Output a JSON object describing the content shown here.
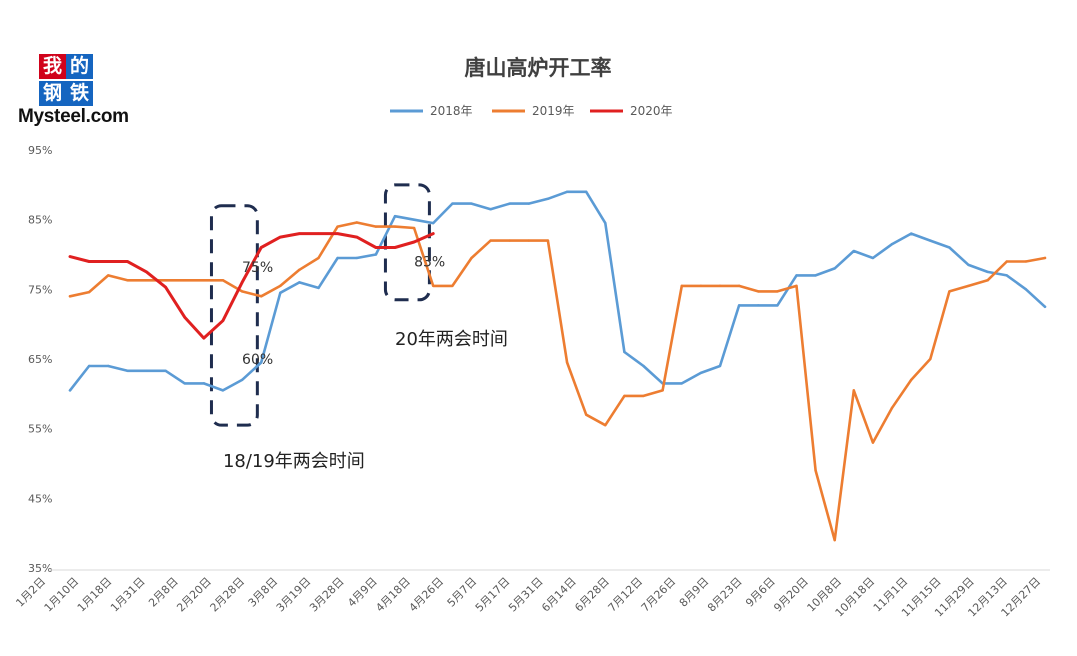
{
  "logo": {
    "chars": [
      "我",
      "的",
      "钢",
      "铁"
    ],
    "wordmark": "Mysteel.com",
    "colors": [
      "#d0021b",
      "#1565c0",
      "#1565c0",
      "#1565c0"
    ]
  },
  "chart_data": {
    "type": "line",
    "title": "唐山高炉开工率",
    "legend_position": "top-center",
    "grid": false,
    "ylim": [
      35,
      95
    ],
    "y_ticks": [
      "95%",
      "85%",
      "75%",
      "65%",
      "55%",
      "45%",
      "35%"
    ],
    "x_ticks": [
      "1月2日",
      "1月10日",
      "1月18日",
      "1月31日",
      "2月8日",
      "2月20日",
      "2月28日",
      "3月8日",
      "3月19日",
      "3月28日",
      "4月9日",
      "4月18日",
      "4月26日",
      "5月7日",
      "5月17日",
      "5月31日",
      "6月14日",
      "6月28日",
      "7月12日",
      "7月26日",
      "8月9日",
      "8月23日",
      "9月6日",
      "9月20日",
      "10月8日",
      "10月18日",
      "11月1日",
      "11月15日",
      "11月29日",
      "12月13日",
      "12月27日"
    ],
    "series": [
      {
        "name": "2018年",
        "color": "#5b9bd5",
        "points": [
          [
            1,
            60.5
          ],
          [
            2,
            64
          ],
          [
            3,
            64
          ],
          [
            4,
            63.3
          ],
          [
            5,
            63.3
          ],
          [
            6,
            63.3
          ],
          [
            7,
            61.5
          ],
          [
            8,
            61.5
          ],
          [
            9,
            60.5
          ],
          [
            10,
            62
          ],
          [
            11,
            64.5
          ],
          [
            12,
            74.5
          ],
          [
            13,
            76
          ],
          [
            14,
            75.2
          ],
          [
            15,
            79.5
          ],
          [
            16,
            79.5
          ],
          [
            17,
            80
          ],
          [
            18,
            85.5
          ],
          [
            19,
            85
          ],
          [
            20,
            84.5
          ],
          [
            21,
            87.3
          ],
          [
            22,
            87.3
          ],
          [
            23,
            86.5
          ],
          [
            24,
            87.3
          ],
          [
            25,
            87.3
          ],
          [
            26,
            88
          ],
          [
            27,
            89
          ],
          [
            28,
            89
          ],
          [
            29,
            84.5
          ],
          [
            30,
            66
          ],
          [
            31,
            64
          ],
          [
            32,
            61.5
          ],
          [
            33,
            61.5
          ],
          [
            34,
            63
          ],
          [
            35,
            64
          ],
          [
            36,
            72.7
          ],
          [
            37,
            72.7
          ],
          [
            38,
            72.7
          ],
          [
            39,
            77
          ],
          [
            40,
            77
          ],
          [
            41,
            78
          ],
          [
            42,
            80.5
          ],
          [
            43,
            79.5
          ],
          [
            44,
            81.5
          ],
          [
            45,
            83
          ],
          [
            46,
            82
          ],
          [
            47,
            81
          ],
          [
            48,
            78.5
          ],
          [
            49,
            77.5
          ],
          [
            50,
            77
          ],
          [
            51,
            75
          ],
          [
            52,
            72.5
          ]
        ]
      },
      {
        "name": "2019年",
        "color": "#ed7d31",
        "points": [
          [
            1,
            74
          ],
          [
            2,
            74.6
          ],
          [
            3,
            77
          ],
          [
            4,
            76.3
          ],
          [
            5,
            76.3
          ],
          [
            6,
            76.3
          ],
          [
            7,
            76.3
          ],
          [
            8,
            76.3
          ],
          [
            9,
            76.3
          ],
          [
            10,
            74.7
          ],
          [
            11,
            74
          ],
          [
            12,
            75.5
          ],
          [
            13,
            77.8
          ],
          [
            14,
            79.5
          ],
          [
            15,
            84
          ],
          [
            16,
            84.6
          ],
          [
            17,
            84
          ],
          [
            18,
            84
          ],
          [
            19,
            83.8
          ],
          [
            20,
            75.5
          ],
          [
            21,
            75.5
          ],
          [
            22,
            79.5
          ],
          [
            23,
            82
          ],
          [
            24,
            82
          ],
          [
            25,
            82
          ],
          [
            26,
            82
          ],
          [
            27,
            64.5
          ],
          [
            28,
            57
          ],
          [
            29,
            55.5
          ],
          [
            30,
            59.7
          ],
          [
            31,
            59.7
          ],
          [
            32,
            60.5
          ],
          [
            33,
            75.5
          ],
          [
            34,
            75.5
          ],
          [
            35,
            75.5
          ],
          [
            36,
            75.5
          ],
          [
            37,
            74.7
          ],
          [
            38,
            74.7
          ],
          [
            39,
            75.5
          ],
          [
            40,
            49
          ],
          [
            41,
            39
          ],
          [
            42,
            60.5
          ],
          [
            43,
            53
          ],
          [
            44,
            58
          ],
          [
            45,
            62
          ],
          [
            46,
            65
          ],
          [
            47,
            74.7
          ],
          [
            48,
            75.5
          ],
          [
            49,
            76.3
          ],
          [
            50,
            79
          ],
          [
            51,
            79
          ],
          [
            52,
            79.5
          ]
        ]
      },
      {
        "name": "2020年",
        "color": "#e02020",
        "points": [
          [
            1,
            79.7
          ],
          [
            2,
            79
          ],
          [
            3,
            79
          ],
          [
            4,
            79
          ],
          [
            5,
            77.5
          ],
          [
            6,
            75.3
          ],
          [
            7,
            71
          ],
          [
            8,
            68
          ],
          [
            9,
            70.5
          ],
          [
            10,
            76
          ],
          [
            11,
            81
          ],
          [
            12,
            82.5
          ],
          [
            13,
            83
          ],
          [
            14,
            83
          ],
          [
            15,
            83
          ],
          [
            16,
            82.5
          ],
          [
            17,
            81
          ],
          [
            18,
            81
          ],
          [
            19,
            81.8
          ],
          [
            20,
            83
          ]
        ]
      }
    ],
    "annotations": [
      {
        "text": "75%",
        "x": 10,
        "y": 77.5
      },
      {
        "text": "60%",
        "x": 10,
        "y": 64.3
      },
      {
        "text": "83%",
        "x": 19,
        "y": 78.3
      },
      {
        "text": "18/19年两会时间",
        "x": 9,
        "y": 49.5
      },
      {
        "text": "20年两会时间",
        "x": 18,
        "y": 67
      }
    ],
    "highlight_boxes": [
      {
        "x": [
          8.4,
          10.8
        ],
        "y": [
          55.5,
          87
        ]
      },
      {
        "x": [
          17.5,
          19.8
        ],
        "y": [
          73.5,
          90
        ]
      }
    ]
  }
}
